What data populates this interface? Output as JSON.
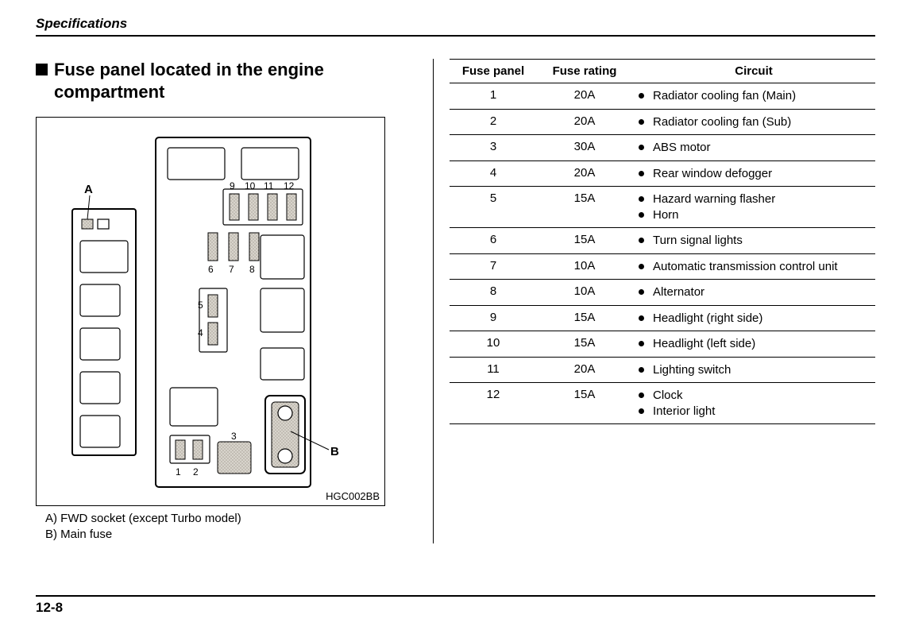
{
  "header": "Specifications",
  "section_title": "Fuse panel located in the engine compartment",
  "diagram": {
    "code": "HGC002BB",
    "label_A": "A",
    "label_B": "B",
    "fuse_positions": {
      "row_top": [
        "9",
        "10",
        "11",
        "12"
      ],
      "row_mid": [
        "6",
        "7",
        "8"
      ],
      "col_left": [
        "5",
        "4"
      ],
      "bottom_pair": [
        "1",
        "2"
      ],
      "bottom_single": "3"
    }
  },
  "legend": {
    "A": "A)  FWD socket (except Turbo model)",
    "B": "B)  Main fuse"
  },
  "table": {
    "headers": [
      "Fuse panel",
      "Fuse rating",
      "Circuit"
    ],
    "rows": [
      {
        "n": "1",
        "rating": "20A",
        "circuits": [
          "Radiator cooling fan (Main)"
        ]
      },
      {
        "n": "2",
        "rating": "20A",
        "circuits": [
          "Radiator cooling fan (Sub)"
        ]
      },
      {
        "n": "3",
        "rating": "30A",
        "circuits": [
          "ABS motor"
        ]
      },
      {
        "n": "4",
        "rating": "20A",
        "circuits": [
          "Rear window defogger"
        ]
      },
      {
        "n": "5",
        "rating": "15A",
        "circuits": [
          "Hazard warning flasher",
          "Horn"
        ]
      },
      {
        "n": "6",
        "rating": "15A",
        "circuits": [
          "Turn signal lights"
        ]
      },
      {
        "n": "7",
        "rating": "10A",
        "circuits": [
          "Automatic transmission control unit"
        ]
      },
      {
        "n": "8",
        "rating": "10A",
        "circuits": [
          "Alternator"
        ]
      },
      {
        "n": "9",
        "rating": "15A",
        "circuits": [
          "Headlight (right side)"
        ]
      },
      {
        "n": "10",
        "rating": "15A",
        "circuits": [
          "Headlight (left side)"
        ]
      },
      {
        "n": "11",
        "rating": "20A",
        "circuits": [
          "Lighting switch"
        ]
      },
      {
        "n": "12",
        "rating": "15A",
        "circuits": [
          "Clock",
          "Interior light"
        ]
      }
    ]
  },
  "page_number": "12-8",
  "colors": {
    "text": "#000000",
    "background": "#ffffff",
    "rule": "#000000"
  }
}
